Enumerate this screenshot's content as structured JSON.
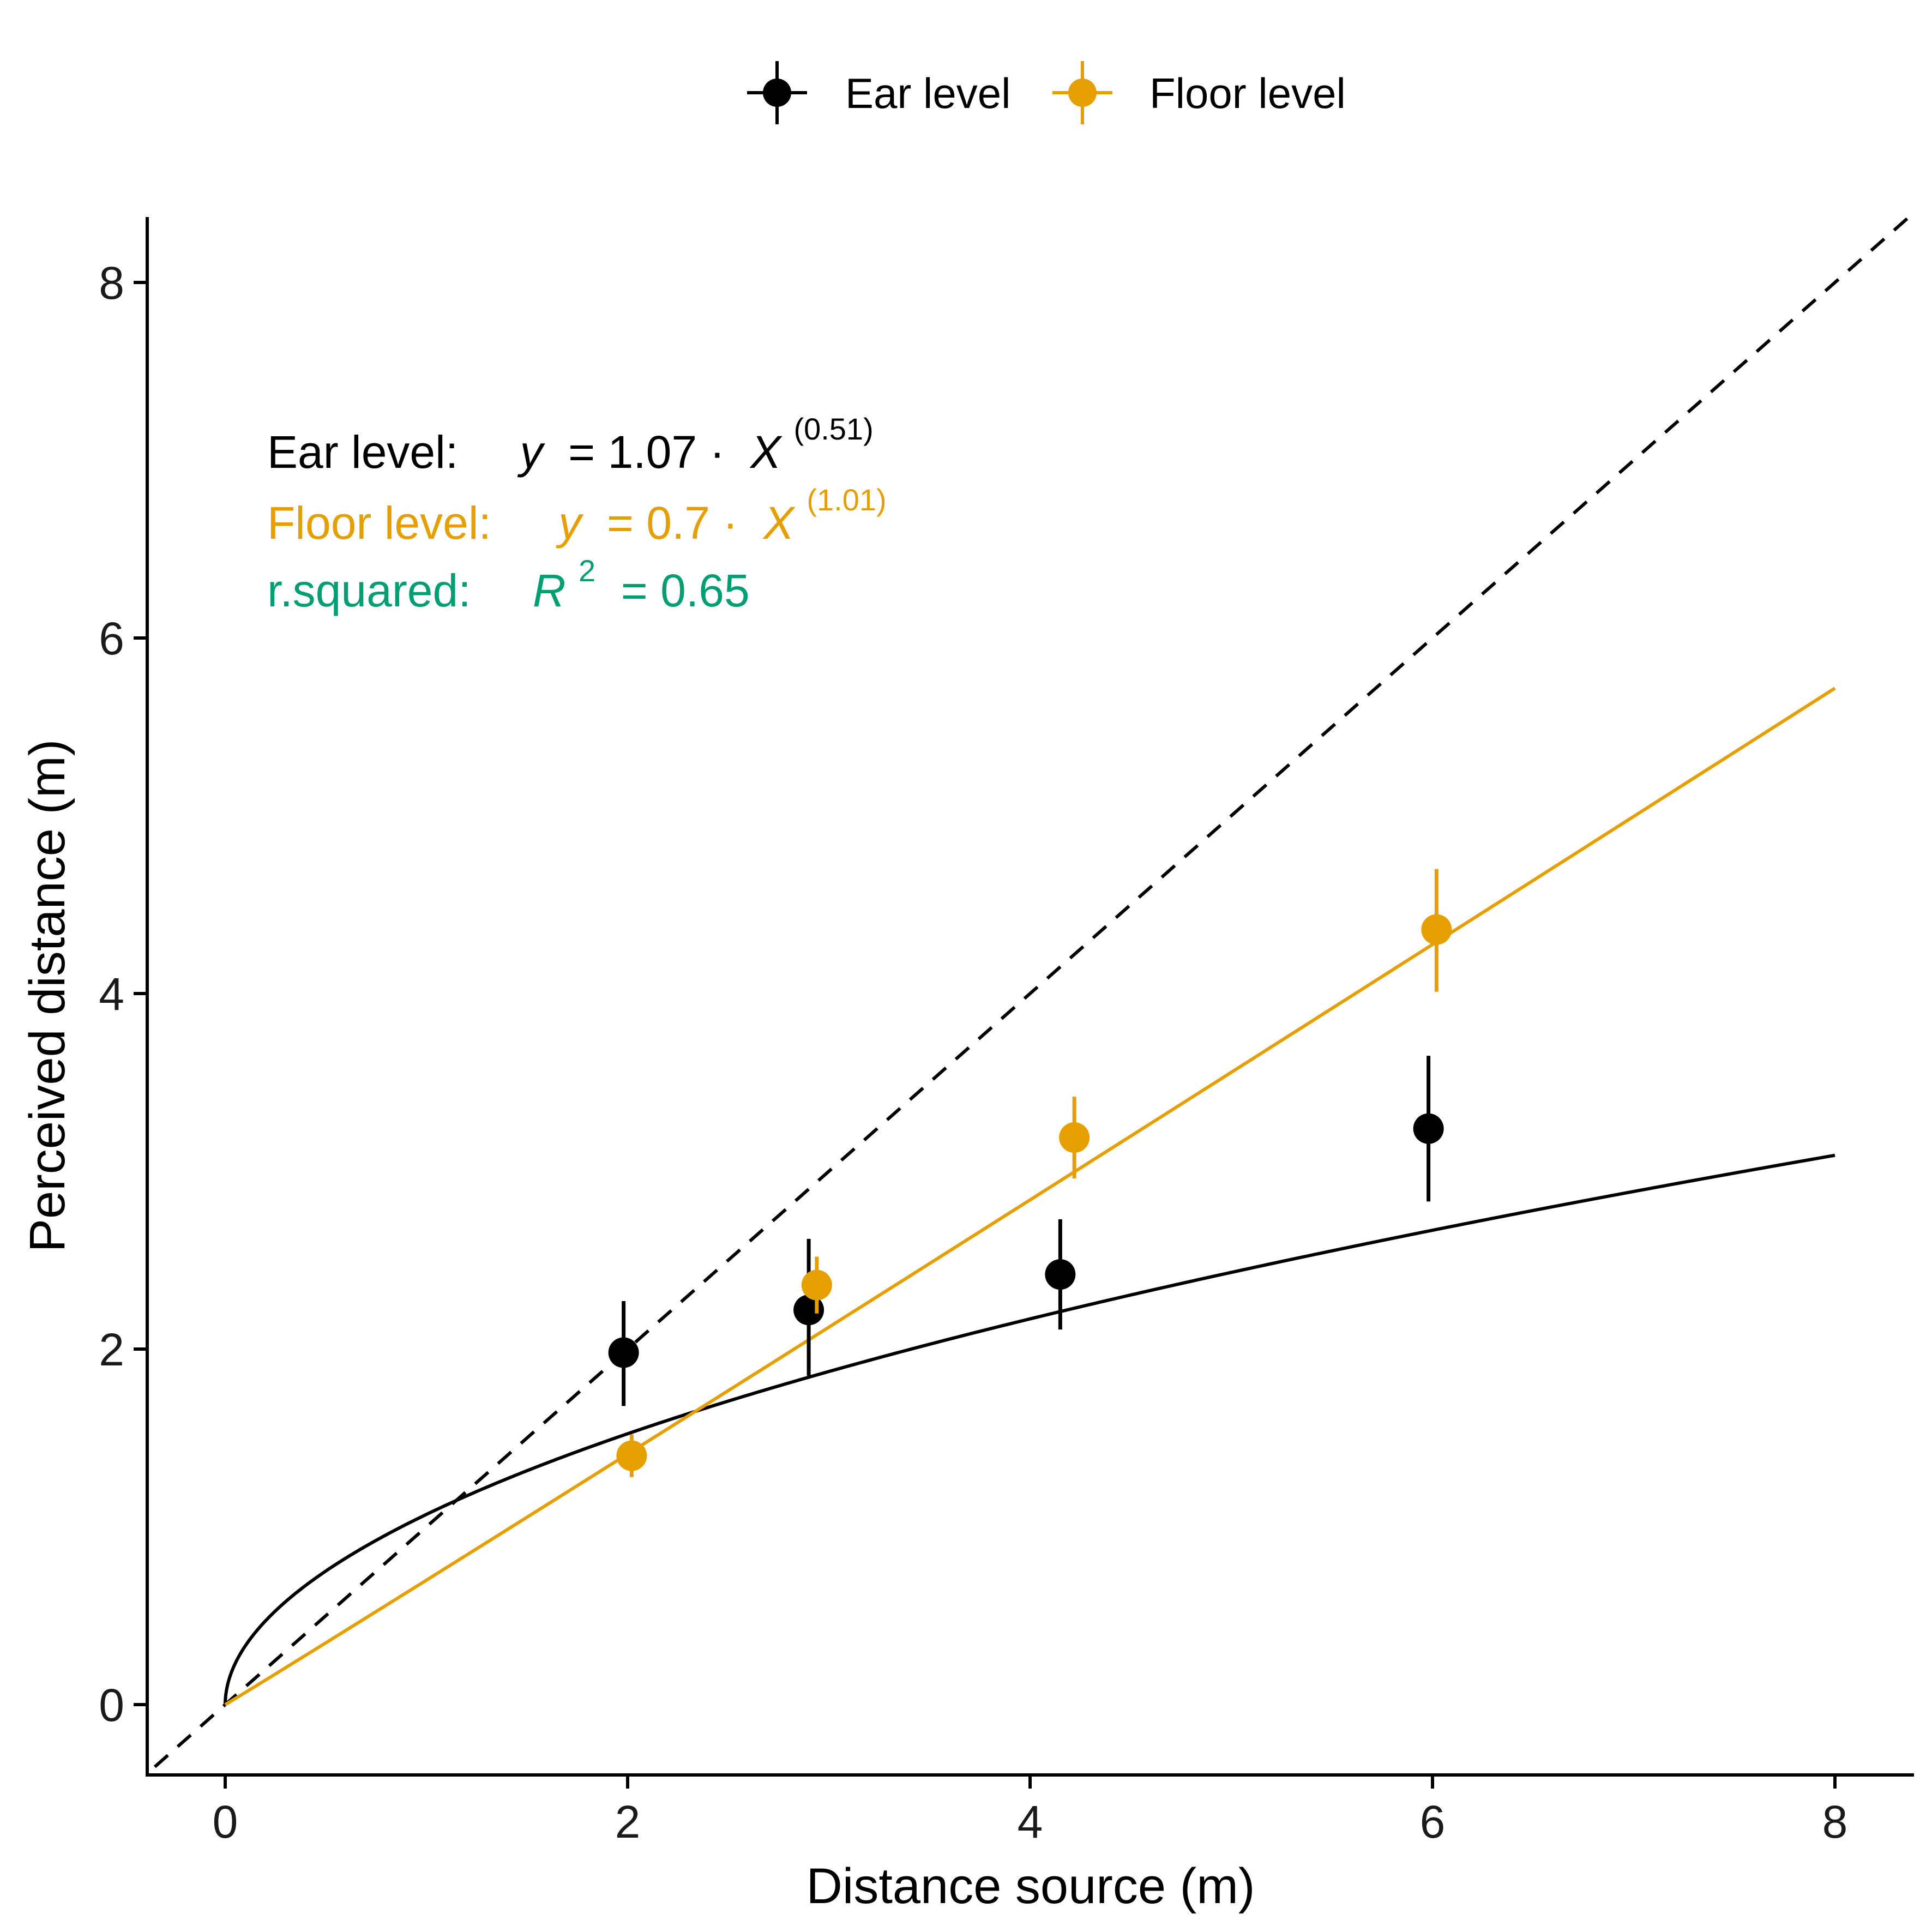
{
  "chart_data": {
    "type": "scatter",
    "title": "",
    "xlabel": "Distance source (m)",
    "ylabel": "Perceived distance (m)",
    "xlim": [
      -0.4,
      8.4
    ],
    "ylim": [
      -0.4,
      8.4
    ],
    "x_ticks": [
      0,
      2,
      4,
      6,
      8
    ],
    "y_ticks": [
      0,
      2,
      4,
      6,
      8
    ],
    "grid": false,
    "legend_position": "top",
    "colors": {
      "ear": "#000000",
      "floor": "#E69F00",
      "rsq": "#009E73",
      "identity": "#000000"
    },
    "series": [
      {
        "name": "Ear level",
        "color": "#000000",
        "points": [
          {
            "x": 1.98,
            "y": 1.98,
            "ylo": 1.68,
            "yhi": 2.27
          },
          {
            "x": 2.9,
            "y": 2.22,
            "ylo": 1.85,
            "yhi": 2.62
          },
          {
            "x": 4.15,
            "y": 2.42,
            "ylo": 2.11,
            "yhi": 2.73
          },
          {
            "x": 5.98,
            "y": 3.24,
            "ylo": 2.83,
            "yhi": 3.65
          }
        ],
        "fit": {
          "a": 1.07,
          "b": 0.51,
          "x_range": [
            0,
            8
          ]
        }
      },
      {
        "name": "Floor level",
        "color": "#E69F00",
        "points": [
          {
            "x": 2.02,
            "y": 1.4,
            "ylo": 1.28,
            "yhi": 1.52
          },
          {
            "x": 2.94,
            "y": 2.36,
            "ylo": 2.2,
            "yhi": 2.52
          },
          {
            "x": 4.22,
            "y": 3.19,
            "ylo": 2.96,
            "yhi": 3.42
          },
          {
            "x": 6.02,
            "y": 4.36,
            "ylo": 4.01,
            "yhi": 4.7
          }
        ],
        "fit": {
          "a": 0.7,
          "b": 1.01,
          "x_range": [
            0,
            8
          ]
        }
      }
    ],
    "reference_line": {
      "type": "identity",
      "style": "dashed"
    },
    "annotations": {
      "ear": {
        "label": "Ear level:",
        "eq_y": "y",
        "eq_mid": " = 1.07 · ",
        "eq_x": "X",
        "exponent": "(0.51)"
      },
      "floor": {
        "label": "Floor level:",
        "eq_y": "y",
        "eq_mid": " = 0.7 · ",
        "eq_x": "X",
        "exponent": "(1.01)"
      },
      "rsq": {
        "label": "r.squared:",
        "eq_r": "R",
        "exponent": "2",
        "eq_rest": " = 0.65"
      }
    }
  }
}
